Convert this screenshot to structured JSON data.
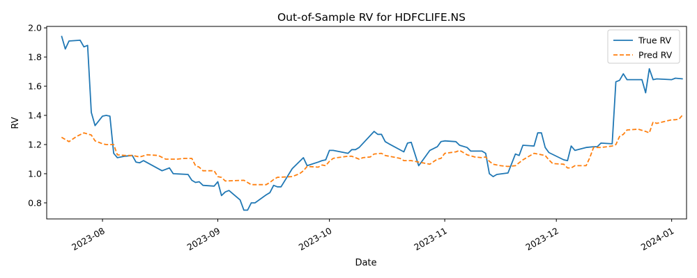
{
  "chart_data": {
    "type": "line",
    "title": "Out-of-Sample RV for HDFCLIFE.NS",
    "xlabel": "Date",
    "ylabel": "RV",
    "x_type": "date",
    "xlim": [
      "2023-07-17",
      "2024-01-05"
    ],
    "ylim": [
      0.69,
      2.01
    ],
    "x_ticks": [
      "2023-08-01",
      "2023-09-01",
      "2023-10-01",
      "2023-11-01",
      "2023-12-01",
      "2024-01-01"
    ],
    "x_tick_labels": [
      "2023-08",
      "2023-09",
      "2023-10",
      "2023-11",
      "2023-12",
      "2024-01"
    ],
    "y_ticks": [
      0.8,
      1.0,
      1.2,
      1.4,
      1.6,
      1.8,
      2.0
    ],
    "y_tick_labels": [
      "0.8",
      "1.0",
      "1.2",
      "1.4",
      "1.6",
      "1.8",
      "2.0"
    ],
    "grid": false,
    "legend_position": "top-right",
    "series": [
      {
        "name": "True RV",
        "color": "#1f77b4",
        "style": "solid",
        "points": [
          [
            "2023-07-21",
            1.945
          ],
          [
            "2023-07-22",
            1.855
          ],
          [
            "2023-07-23",
            1.91
          ],
          [
            "2023-07-26",
            1.915
          ],
          [
            "2023-07-27",
            1.87
          ],
          [
            "2023-07-28",
            1.88
          ],
          [
            "2023-07-29",
            1.42
          ],
          [
            "2023-07-30",
            1.33
          ],
          [
            "2023-08-01",
            1.395
          ],
          [
            "2023-08-02",
            1.4
          ],
          [
            "2023-08-03",
            1.395
          ],
          [
            "2023-08-04",
            1.14
          ],
          [
            "2023-08-05",
            1.11
          ],
          [
            "2023-08-07",
            1.12
          ],
          [
            "2023-08-09",
            1.125
          ],
          [
            "2023-08-10",
            1.08
          ],
          [
            "2023-08-11",
            1.075
          ],
          [
            "2023-08-12",
            1.09
          ],
          [
            "2023-08-17",
            1.02
          ],
          [
            "2023-08-19",
            1.04
          ],
          [
            "2023-08-20",
            1.0
          ],
          [
            "2023-08-24",
            0.995
          ],
          [
            "2023-08-25",
            0.955
          ],
          [
            "2023-08-26",
            0.94
          ],
          [
            "2023-08-27",
            0.945
          ],
          [
            "2023-08-28",
            0.92
          ],
          [
            "2023-08-31",
            0.915
          ],
          [
            "2023-09-01",
            0.945
          ],
          [
            "2023-09-02",
            0.85
          ],
          [
            "2023-09-03",
            0.875
          ],
          [
            "2023-09-04",
            0.885
          ],
          [
            "2023-09-07",
            0.82
          ],
          [
            "2023-09-08",
            0.75
          ],
          [
            "2023-09-09",
            0.75
          ],
          [
            "2023-09-10",
            0.8
          ],
          [
            "2023-09-11",
            0.8
          ],
          [
            "2023-09-14",
            0.855
          ],
          [
            "2023-09-15",
            0.87
          ],
          [
            "2023-09-16",
            0.92
          ],
          [
            "2023-09-17",
            0.91
          ],
          [
            "2023-09-18",
            0.91
          ],
          [
            "2023-09-21",
            1.035
          ],
          [
            "2023-09-24",
            1.11
          ],
          [
            "2023-09-25",
            1.055
          ],
          [
            "2023-09-28",
            1.08
          ],
          [
            "2023-09-29",
            1.09
          ],
          [
            "2023-09-30",
            1.095
          ],
          [
            "2023-10-01",
            1.16
          ],
          [
            "2023-10-02",
            1.16
          ],
          [
            "2023-10-06",
            1.14
          ],
          [
            "2023-10-07",
            1.165
          ],
          [
            "2023-10-08",
            1.165
          ],
          [
            "2023-10-09",
            1.18
          ],
          [
            "2023-10-13",
            1.29
          ],
          [
            "2023-10-14",
            1.27
          ],
          [
            "2023-10-15",
            1.27
          ],
          [
            "2023-10-16",
            1.22
          ],
          [
            "2023-10-17",
            1.205
          ],
          [
            "2023-10-21",
            1.15
          ],
          [
            "2023-10-22",
            1.21
          ],
          [
            "2023-10-23",
            1.215
          ],
          [
            "2023-10-25",
            1.055
          ],
          [
            "2023-10-26",
            1.09
          ],
          [
            "2023-10-28",
            1.16
          ],
          [
            "2023-10-30",
            1.185
          ],
          [
            "2023-10-31",
            1.22
          ],
          [
            "2023-11-01",
            1.225
          ],
          [
            "2023-11-04",
            1.22
          ],
          [
            "2023-11-05",
            1.195
          ],
          [
            "2023-11-07",
            1.18
          ],
          [
            "2023-11-08",
            1.155
          ],
          [
            "2023-11-11",
            1.155
          ],
          [
            "2023-11-12",
            1.14
          ],
          [
            "2023-11-13",
            1.0
          ],
          [
            "2023-11-14",
            0.98
          ],
          [
            "2023-11-15",
            0.995
          ],
          [
            "2023-11-18",
            1.005
          ],
          [
            "2023-11-20",
            1.135
          ],
          [
            "2023-11-21",
            1.125
          ],
          [
            "2023-11-22",
            1.195
          ],
          [
            "2023-11-25",
            1.19
          ],
          [
            "2023-11-26",
            1.28
          ],
          [
            "2023-11-27",
            1.28
          ],
          [
            "2023-11-28",
            1.18
          ],
          [
            "2023-11-29",
            1.145
          ],
          [
            "2023-12-03",
            1.095
          ],
          [
            "2023-12-04",
            1.09
          ],
          [
            "2023-12-05",
            1.19
          ],
          [
            "2023-12-06",
            1.16
          ],
          [
            "2023-12-09",
            1.18
          ],
          [
            "2023-12-11",
            1.185
          ],
          [
            "2023-12-12",
            1.185
          ],
          [
            "2023-12-13",
            1.21
          ],
          [
            "2023-12-16",
            1.205
          ],
          [
            "2023-12-17",
            1.63
          ],
          [
            "2023-12-18",
            1.64
          ],
          [
            "2023-12-19",
            1.685
          ],
          [
            "2023-12-20",
            1.645
          ],
          [
            "2023-12-24",
            1.645
          ],
          [
            "2023-12-25",
            1.555
          ],
          [
            "2023-12-26",
            1.72
          ],
          [
            "2023-12-27",
            1.645
          ],
          [
            "2023-12-28",
            1.65
          ],
          [
            "2024-01-01",
            1.645
          ],
          [
            "2024-01-02",
            1.655
          ],
          [
            "2024-01-04",
            1.65
          ]
        ]
      },
      {
        "name": "Pred RV",
        "color": "#ff7f0e",
        "style": "dashed",
        "points": [
          [
            "2023-07-21",
            1.25
          ],
          [
            "2023-07-23",
            1.22
          ],
          [
            "2023-07-25",
            1.255
          ],
          [
            "2023-07-27",
            1.28
          ],
          [
            "2023-07-29",
            1.265
          ],
          [
            "2023-07-30",
            1.225
          ],
          [
            "2023-08-01",
            1.205
          ],
          [
            "2023-08-02",
            1.2
          ],
          [
            "2023-08-04",
            1.2
          ],
          [
            "2023-08-05",
            1.13
          ],
          [
            "2023-08-07",
            1.125
          ],
          [
            "2023-08-09",
            1.125
          ],
          [
            "2023-08-11",
            1.115
          ],
          [
            "2023-08-13",
            1.13
          ],
          [
            "2023-08-16",
            1.125
          ],
          [
            "2023-08-18",
            1.1
          ],
          [
            "2023-08-21",
            1.1
          ],
          [
            "2023-08-23",
            1.105
          ],
          [
            "2023-08-25",
            1.105
          ],
          [
            "2023-08-26",
            1.055
          ],
          [
            "2023-08-27",
            1.045
          ],
          [
            "2023-08-28",
            1.02
          ],
          [
            "2023-08-31",
            1.02
          ],
          [
            "2023-09-01",
            0.98
          ],
          [
            "2023-09-02",
            0.975
          ],
          [
            "2023-09-03",
            0.95
          ],
          [
            "2023-09-08",
            0.955
          ],
          [
            "2023-09-10",
            0.925
          ],
          [
            "2023-09-14",
            0.925
          ],
          [
            "2023-09-15",
            0.94
          ],
          [
            "2023-09-16",
            0.96
          ],
          [
            "2023-09-17",
            0.975
          ],
          [
            "2023-09-21",
            0.98
          ],
          [
            "2023-09-23",
            1.0
          ],
          [
            "2023-09-24",
            1.02
          ],
          [
            "2023-09-25",
            1.05
          ],
          [
            "2023-09-28",
            1.045
          ],
          [
            "2023-09-29",
            1.06
          ],
          [
            "2023-09-30",
            1.055
          ],
          [
            "2023-10-01",
            1.085
          ],
          [
            "2023-10-02",
            1.105
          ],
          [
            "2023-10-03",
            1.11
          ],
          [
            "2023-10-06",
            1.12
          ],
          [
            "2023-10-07",
            1.12
          ],
          [
            "2023-10-09",
            1.1
          ],
          [
            "2023-10-10",
            1.11
          ],
          [
            "2023-10-12",
            1.115
          ],
          [
            "2023-10-13",
            1.135
          ],
          [
            "2023-10-15",
            1.14
          ],
          [
            "2023-10-16",
            1.125
          ],
          [
            "2023-10-18",
            1.115
          ],
          [
            "2023-10-20",
            1.105
          ],
          [
            "2023-10-21",
            1.09
          ],
          [
            "2023-10-23",
            1.09
          ],
          [
            "2023-10-25",
            1.08
          ],
          [
            "2023-10-28",
            1.065
          ],
          [
            "2023-10-30",
            1.1
          ],
          [
            "2023-10-31",
            1.105
          ],
          [
            "2023-11-01",
            1.14
          ],
          [
            "2023-11-04",
            1.15
          ],
          [
            "2023-11-05",
            1.16
          ],
          [
            "2023-11-06",
            1.145
          ],
          [
            "2023-11-07",
            1.13
          ],
          [
            "2023-11-09",
            1.115
          ],
          [
            "2023-11-11",
            1.11
          ],
          [
            "2023-11-12",
            1.115
          ],
          [
            "2023-11-13",
            1.085
          ],
          [
            "2023-11-14",
            1.065
          ],
          [
            "2023-11-16",
            1.055
          ],
          [
            "2023-11-18",
            1.05
          ],
          [
            "2023-11-20",
            1.055
          ],
          [
            "2023-11-21",
            1.075
          ],
          [
            "2023-11-22",
            1.095
          ],
          [
            "2023-11-25",
            1.14
          ],
          [
            "2023-11-26",
            1.135
          ],
          [
            "2023-11-28",
            1.125
          ],
          [
            "2023-11-29",
            1.095
          ],
          [
            "2023-11-30",
            1.07
          ],
          [
            "2023-12-03",
            1.065
          ],
          [
            "2023-12-04",
            1.04
          ],
          [
            "2023-12-05",
            1.04
          ],
          [
            "2023-12-06",
            1.055
          ],
          [
            "2023-12-09",
            1.055
          ],
          [
            "2023-12-10",
            1.11
          ],
          [
            "2023-12-11",
            1.18
          ],
          [
            "2023-12-13",
            1.18
          ],
          [
            "2023-12-16",
            1.19
          ],
          [
            "2023-12-17",
            1.2
          ],
          [
            "2023-12-18",
            1.255
          ],
          [
            "2023-12-19",
            1.27
          ],
          [
            "2023-12-20",
            1.3
          ],
          [
            "2023-12-23",
            1.305
          ],
          [
            "2023-12-25",
            1.29
          ],
          [
            "2023-12-26",
            1.28
          ],
          [
            "2023-12-27",
            1.355
          ],
          [
            "2023-12-28",
            1.345
          ],
          [
            "2024-01-01",
            1.37
          ],
          [
            "2024-01-02",
            1.37
          ],
          [
            "2024-01-03",
            1.375
          ],
          [
            "2024-01-04",
            1.405
          ]
        ]
      }
    ]
  }
}
